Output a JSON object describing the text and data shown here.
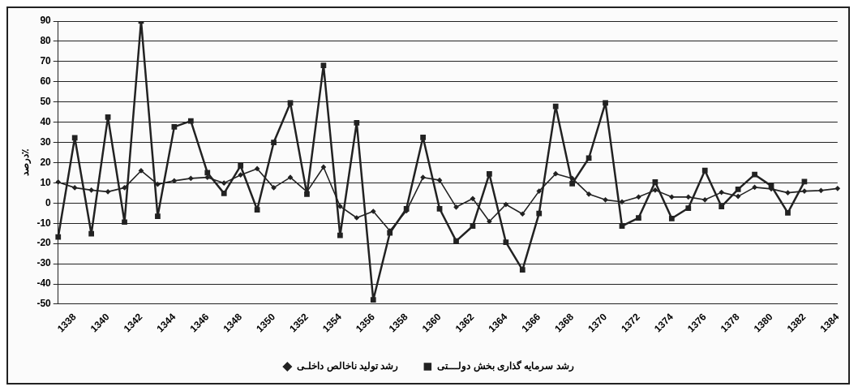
{
  "chart_data": {
    "type": "line",
    "ylabel": "درصد٪",
    "categories": [
      null,
      "1338",
      null,
      "1340",
      null,
      "1342",
      null,
      "1344",
      null,
      "1346",
      null,
      "1348",
      null,
      "1350",
      null,
      "1352",
      null,
      "1354",
      null,
      "1356",
      null,
      "1358",
      null,
      "1360",
      null,
      "1362",
      null,
      "1364",
      null,
      "1366",
      null,
      "1368",
      null,
      "1370",
      null,
      "1372",
      null,
      "1374",
      null,
      "1376",
      null,
      "1378",
      null,
      "1380",
      null,
      "1382",
      null,
      "1384"
    ],
    "series": [
      {
        "name": "رشد تولید ناخالص داخلـی",
        "color": "#222222",
        "marker": "diamond",
        "values": [
          10.4,
          7.6,
          6.4,
          5.6,
          7.6,
          16.0,
          9.3,
          11.0,
          12.2,
          12.7,
          9.9,
          13.9,
          17.0,
          7.6,
          12.7,
          5.6,
          17.8,
          -1.6,
          -7.3,
          -4.1,
          -13.7,
          -3.9,
          12.7,
          11.3,
          -2.0,
          2.2,
          -9.1,
          -0.7,
          -5.4,
          5.9,
          14.5,
          12.2,
          4.4,
          1.6,
          0.6,
          3.0,
          6.4,
          3.0,
          3.0,
          1.6,
          5.3,
          3.3,
          7.8,
          7.0,
          5.1,
          5.9,
          6.2,
          7.2
        ]
      },
      {
        "name": "رشد سرمایه گذاری بخش دولـــتی",
        "color": "#222222",
        "marker": "square",
        "values": [
          -16.8,
          32.3,
          -15.2,
          42.5,
          -9.4,
          90,
          -6.5,
          37.7,
          40.6,
          15.0,
          4.8,
          18.4,
          -3.3,
          30.0,
          49.5,
          4.4,
          68.1,
          -16.0,
          39.7,
          -47.9,
          -14.8,
          -2.8,
          32.5,
          -2.8,
          -18.8,
          -11.4,
          14.4,
          -19.4,
          -33.0,
          -5.1,
          47.8,
          9.6,
          22.2,
          49.5,
          -11.4,
          -7.3,
          10.4,
          -7.6,
          -2.5,
          16.1,
          -1.7,
          6.8,
          14.1,
          8.5,
          -4.8,
          10.6,
          null,
          null
        ]
      }
    ],
    "ylim": [
      -50,
      90
    ],
    "yticks": [
      -50,
      -40,
      -30,
      -20,
      -10,
      0,
      10,
      20,
      30,
      40,
      50,
      60,
      70,
      80,
      90
    ],
    "grid": "y",
    "legend": "bottom",
    "line_style": "solid"
  }
}
